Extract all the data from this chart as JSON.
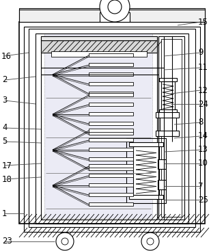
{
  "bg_color": "#ffffff",
  "line_color": "#000000",
  "label_color": "#000000",
  "label_fontsize": 8.5,
  "lw_outer": 1.2,
  "lw_mid": 0.8,
  "lw_thin": 0.6,
  "lw_hair": 0.4
}
